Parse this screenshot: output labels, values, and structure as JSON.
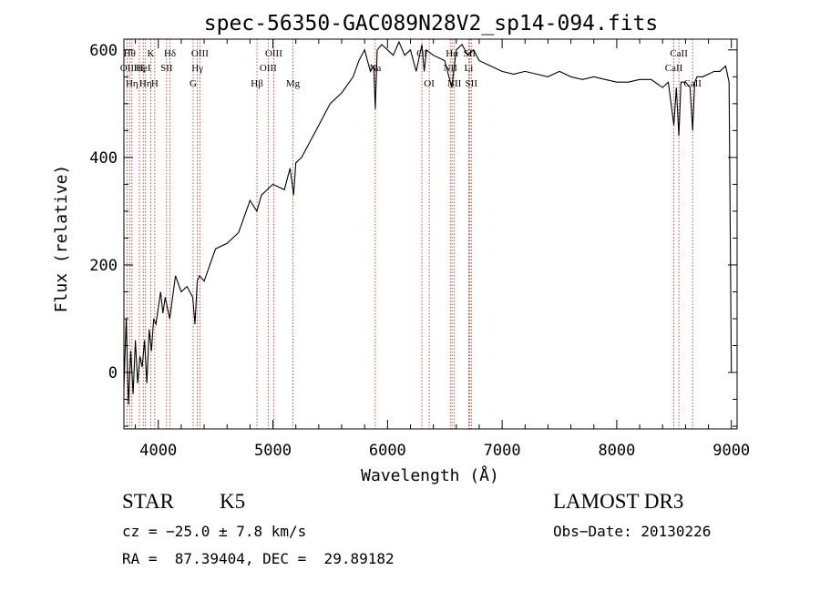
{
  "chart_data": {
    "type": "line",
    "title": "spec-56350-GAC089N28V2_sp14-094.fits",
    "xlabel": "Wavelength (Å)",
    "ylabel": "Flux (relative)",
    "xlim": [
      3700,
      9050
    ],
    "ylim": [
      -105,
      620
    ],
    "xticks": [
      4000,
      5000,
      6000,
      7000,
      8000,
      9000
    ],
    "xtick_labels": [
      "4000",
      "5000",
      "6000",
      "7000",
      "8000",
      "9000"
    ],
    "yticks": [
      0,
      200,
      400,
      600
    ],
    "ytick_labels": [
      "0",
      "200",
      "400",
      "600"
    ],
    "series": [
      {
        "name": "spectrum",
        "x": [
          3700,
          3720,
          3740,
          3760,
          3780,
          3800,
          3820,
          3840,
          3860,
          3880,
          3900,
          3920,
          3940,
          3960,
          3980,
          4000,
          4020,
          4040,
          4060,
          4080,
          4100,
          4150,
          4200,
          4250,
          4300,
          4320,
          4340,
          4360,
          4400,
          4450,
          4500,
          4600,
          4700,
          4800,
          4860,
          4900,
          5000,
          5100,
          5150,
          5180,
          5200,
          5250,
          5300,
          5400,
          5500,
          5600,
          5700,
          5750,
          5800,
          5850,
          5880,
          5893,
          5910,
          5950,
          6000,
          6050,
          6100,
          6150,
          6200,
          6250,
          6300,
          6320,
          6340,
          6400,
          6500,
          6560,
          6600,
          6650,
          6700,
          6750,
          6800,
          6900,
          7000,
          7100,
          7200,
          7300,
          7400,
          7500,
          7600,
          7700,
          7800,
          7900,
          8000,
          8100,
          8200,
          8300,
          8400,
          8450,
          8498,
          8520,
          8542,
          8560,
          8600,
          8640,
          8662,
          8680,
          8700,
          8750,
          8800,
          8850,
          8900,
          8950,
          8980,
          9000
        ],
        "y": [
          -30,
          100,
          -60,
          40,
          -40,
          60,
          -20,
          30,
          10,
          60,
          -20,
          80,
          40,
          100,
          90,
          120,
          150,
          110,
          140,
          120,
          100,
          180,
          150,
          160,
          140,
          90,
          170,
          180,
          170,
          200,
          230,
          240,
          260,
          320,
          300,
          330,
          350,
          340,
          380,
          330,
          390,
          400,
          420,
          460,
          500,
          520,
          550,
          580,
          600,
          560,
          570,
          490,
          600,
          610,
          600,
          590,
          615,
          590,
          600,
          560,
          610,
          560,
          600,
          590,
          580,
          530,
          600,
          610,
          590,
          600,
          580,
          570,
          560,
          555,
          560,
          555,
          550,
          560,
          550,
          545,
          550,
          545,
          540,
          540,
          545,
          545,
          530,
          540,
          460,
          530,
          440,
          540,
          540,
          530,
          450,
          540,
          550,
          550,
          555,
          560,
          560,
          570,
          540,
          0
        ]
      }
    ],
    "lines": [
      {
        "wl": 3727,
        "labels": [
          "OII"
        ],
        "row": [
          2
        ]
      },
      {
        "wl": 3750,
        "labels": [
          "Hθ"
        ],
        "row": [
          1
        ]
      },
      {
        "wl": 3770,
        "labels": [
          "Hη"
        ],
        "row": [
          3
        ]
      },
      {
        "wl": 3835,
        "labels": [
          "Hζ"
        ],
        "row": [
          2
        ]
      },
      {
        "wl": 3869,
        "labels": [
          "HeI"
        ],
        "row": [
          2
        ]
      },
      {
        "wl": 3889,
        "labels": [
          "Hη"
        ],
        "row": [
          3
        ]
      },
      {
        "wl": 3934,
        "labels": [
          "K"
        ],
        "row": [
          1
        ]
      },
      {
        "wl": 3969,
        "labels": [
          "H"
        ],
        "row": [
          3
        ]
      },
      {
        "wl": 4072,
        "labels": [
          "SII"
        ],
        "row": [
          2
        ]
      },
      {
        "wl": 4102,
        "labels": [
          "Hδ"
        ],
        "row": [
          1
        ]
      },
      {
        "wl": 4304,
        "labels": [
          "G"
        ],
        "row": [
          3
        ]
      },
      {
        "wl": 4341,
        "labels": [
          "Hγ"
        ],
        "row": [
          2
        ]
      },
      {
        "wl": 4363,
        "labels": [
          "OIII"
        ],
        "row": [
          1
        ]
      },
      {
        "wl": 4861,
        "labels": [
          "Hβ"
        ],
        "row": [
          3
        ]
      },
      {
        "wl": 4959,
        "labels": [
          "OIII"
        ],
        "row": [
          2
        ]
      },
      {
        "wl": 5007,
        "labels": [
          "OIII"
        ],
        "row": [
          1
        ]
      },
      {
        "wl": 5175,
        "labels": [
          "Mg"
        ],
        "row": [
          3
        ]
      },
      {
        "wl": 5893,
        "labels": [
          "Na"
        ],
        "row": [
          2
        ]
      },
      {
        "wl": 6300,
        "labels": [
          "OI"
        ],
        "row": [
          1
        ]
      },
      {
        "wl": 6364,
        "labels": [
          "OI"
        ],
        "row": [
          3
        ]
      },
      {
        "wl": 6548,
        "labels": [
          "NII"
        ],
        "row": [
          2
        ]
      },
      {
        "wl": 6563,
        "labels": [
          "Hα"
        ],
        "row": [
          1
        ]
      },
      {
        "wl": 6583,
        "labels": [
          "NII"
        ],
        "row": [
          3
        ]
      },
      {
        "wl": 6708,
        "labels": [
          "Li"
        ],
        "row": [
          2
        ]
      },
      {
        "wl": 6716,
        "labels": [
          "SII"
        ],
        "row": [
          1
        ]
      },
      {
        "wl": 6731,
        "labels": [
          "SII"
        ],
        "row": [
          3
        ]
      },
      {
        "wl": 8498,
        "labels": [
          "CaII"
        ],
        "row": [
          2
        ]
      },
      {
        "wl": 8542,
        "labels": [
          "CaII"
        ],
        "row": [
          1
        ]
      },
      {
        "wl": 8662,
        "labels": [
          "CaII"
        ],
        "row": [
          3
        ]
      }
    ]
  },
  "info": {
    "class": "STAR",
    "subclass": "K5",
    "survey": "LAMOST DR3",
    "cz": "cz = −25.0 ± 7.8 km/s",
    "obs_date": "Obs−Date: 20130226",
    "coords": "RA =  87.39404, DEC =  29.89182"
  }
}
